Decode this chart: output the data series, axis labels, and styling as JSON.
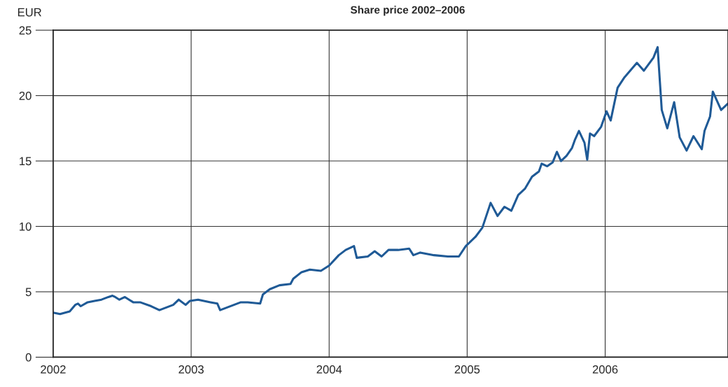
{
  "chart_data": {
    "type": "line",
    "title": "Share price 2002–2006",
    "ylabel": "EUR",
    "xlim": [
      2002,
      2006.89
    ],
    "xticks": [
      2002,
      2003,
      2004,
      2005,
      2006
    ],
    "ylim": [
      0,
      25
    ],
    "yticks": [
      0,
      5,
      10,
      15,
      20,
      25
    ],
    "grid": true,
    "line_style": "solid",
    "series": [
      {
        "color": "#1f5a96",
        "x": [
          2002.0,
          2002.05,
          2002.12,
          2002.16,
          2002.18,
          2002.2,
          2002.25,
          2002.3,
          2002.35,
          2002.4,
          2002.43,
          2002.45,
          2002.48,
          2002.52,
          2002.55,
          2002.58,
          2002.63,
          2002.71,
          2002.77,
          2002.82,
          2002.87,
          2002.91,
          2002.96,
          2002.99,
          2003.05,
          2003.14,
          2003.19,
          2003.21,
          2003.31,
          2003.36,
          2003.41,
          2003.5,
          2003.52,
          2003.57,
          2003.64,
          2003.72,
          2003.74,
          2003.8,
          2003.86,
          2003.94,
          2004.0,
          2004.07,
          2004.12,
          2004.18,
          2004.2,
          2004.28,
          2004.33,
          2004.38,
          2004.43,
          2004.5,
          2004.58,
          2004.61,
          2004.66,
          2004.76,
          2004.86,
          2004.94,
          2004.99,
          2005.01,
          2005.06,
          2005.11,
          2005.17,
          2005.22,
          2005.27,
          2005.32,
          2005.37,
          2005.42,
          2005.47,
          2005.52,
          2005.54,
          2005.58,
          2005.62,
          2005.65,
          2005.68,
          2005.72,
          2005.76,
          2005.78,
          2005.81,
          2005.85,
          2005.87,
          2005.89,
          2005.92,
          2005.97,
          2006.01,
          2006.04,
          2006.09,
          2006.14,
          2006.23,
          2006.28,
          2006.35,
          2006.38,
          2006.41,
          2006.45,
          2006.5,
          2006.54,
          2006.59,
          2006.64,
          2006.7,
          2006.72,
          2006.76,
          2006.78,
          2006.84,
          2006.89
        ],
        "values": [
          3.4,
          3.3,
          3.5,
          4.0,
          4.1,
          3.9,
          4.2,
          4.3,
          4.4,
          4.6,
          4.7,
          4.6,
          4.4,
          4.6,
          4.4,
          4.2,
          4.2,
          3.9,
          3.6,
          3.8,
          4.0,
          4.4,
          4.0,
          4.3,
          4.4,
          4.2,
          4.1,
          3.6,
          4.0,
          4.2,
          4.2,
          4.1,
          4.8,
          5.2,
          5.5,
          5.6,
          6.0,
          6.5,
          6.7,
          6.6,
          7.0,
          7.8,
          8.2,
          8.5,
          7.6,
          7.7,
          8.1,
          7.7,
          8.2,
          8.2,
          8.3,
          7.8,
          8.0,
          7.8,
          7.7,
          7.7,
          8.5,
          8.7,
          9.2,
          9.9,
          11.8,
          10.8,
          11.5,
          11.2,
          12.4,
          12.9,
          13.8,
          14.2,
          14.8,
          14.6,
          14.9,
          15.7,
          15.0,
          15.4,
          16.0,
          16.6,
          17.3,
          16.4,
          15.1,
          17.1,
          16.9,
          17.6,
          18.8,
          18.1,
          20.6,
          21.4,
          22.5,
          21.9,
          22.9,
          23.7,
          18.9,
          17.5,
          19.5,
          16.8,
          15.8,
          16.9,
          15.9,
          17.3,
          18.4,
          20.3,
          18.9,
          19.4
        ]
      }
    ]
  }
}
